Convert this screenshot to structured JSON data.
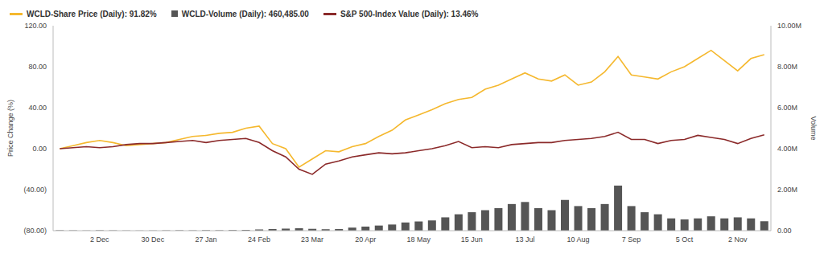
{
  "chart_data": {
    "type": "line",
    "ylabel": "Price Change (%)",
    "y2label": "Volume",
    "categories": [
      null,
      null,
      null,
      "2 Dec",
      null,
      null,
      null,
      "30 Dec",
      null,
      null,
      null,
      "27 Jan",
      null,
      null,
      null,
      "24 Feb",
      null,
      null,
      null,
      "23 Mar",
      null,
      null,
      null,
      "20 Apr",
      null,
      null,
      null,
      "18 May",
      null,
      null,
      null,
      "15 Jun",
      null,
      null,
      null,
      "13 Jul",
      null,
      null,
      null,
      "10 Aug",
      null,
      null,
      null,
      "7 Sep",
      null,
      null,
      null,
      "5 Oct",
      null,
      null,
      null,
      "2 Nov",
      null,
      null
    ],
    "series": [
      {
        "name": "WCLD-Share Price (Daily): 91.82%",
        "color": "#f5b82e",
        "type": "line",
        "values": [
          0,
          3,
          6,
          8,
          6,
          3,
          4,
          5,
          6,
          9,
          12,
          13,
          15,
          16,
          20,
          22,
          5,
          0,
          -18,
          -10,
          -2,
          -3,
          2,
          5,
          12,
          18,
          28,
          33,
          38,
          44,
          48,
          50,
          58,
          62,
          68,
          74,
          68,
          66,
          72,
          62,
          65,
          75,
          90,
          72,
          70,
          68,
          75,
          80,
          88,
          96,
          86,
          76,
          88,
          91.82
        ]
      },
      {
        "name": "WCLD-Volume (Daily): 460,485.00",
        "color": "#555555",
        "type": "bar",
        "axis": "y2",
        "values": [
          20000,
          15000,
          10000,
          20000,
          15000,
          10000,
          8000,
          10000,
          15000,
          20000,
          15000,
          25000,
          20000,
          30000,
          40000,
          60000,
          80000,
          100000,
          120000,
          90000,
          70000,
          80000,
          150000,
          200000,
          250000,
          300000,
          400000,
          450000,
          500000,
          650000,
          800000,
          900000,
          1000000,
          1100000,
          1300000,
          1400000,
          1100000,
          1000000,
          1500000,
          1200000,
          1100000,
          1300000,
          2200000,
          1200000,
          900000,
          800000,
          600000,
          550000,
          600000,
          700000,
          600000,
          650000,
          600000,
          460485
        ]
      },
      {
        "name": "S&P 500-Index Value (Daily): 13.46%",
        "color": "#8b2a2a",
        "type": "line",
        "values": [
          0,
          1,
          2,
          1,
          2,
          4,
          5,
          5,
          6,
          7,
          8,
          6,
          8,
          9,
          10,
          6,
          -2,
          -8,
          -20,
          -25,
          -15,
          -12,
          -8,
          -6,
          -4,
          -5,
          -4,
          -2,
          0,
          3,
          7,
          1,
          2,
          1,
          4,
          5,
          6,
          6,
          8,
          9,
          10,
          12,
          16,
          9,
          9,
          5,
          8,
          9,
          13,
          11,
          9,
          5,
          10,
          13.46
        ]
      }
    ],
    "ylim": [
      -80,
      120
    ],
    "yticks": [
      {
        "value": -80,
        "label": "(80.00)"
      },
      {
        "value": -40,
        "label": "(40.00)"
      },
      {
        "value": 0,
        "label": "0.00"
      },
      {
        "value": 40,
        "label": "40.00"
      },
      {
        "value": 80,
        "label": "80.00"
      },
      {
        "value": 120,
        "label": "120.00"
      }
    ],
    "y2lim": [
      0,
      10000000
    ],
    "y2ticks": [
      {
        "value": 0,
        "label": "0.00"
      },
      {
        "value": 2000000,
        "label": "2.00M"
      },
      {
        "value": 4000000,
        "label": "4.00M"
      },
      {
        "value": 6000000,
        "label": "6.00M"
      },
      {
        "value": 8000000,
        "label": "8.00M"
      },
      {
        "value": 10000000,
        "label": "10.00M"
      }
    ],
    "grid": false,
    "legend": "top-left"
  }
}
